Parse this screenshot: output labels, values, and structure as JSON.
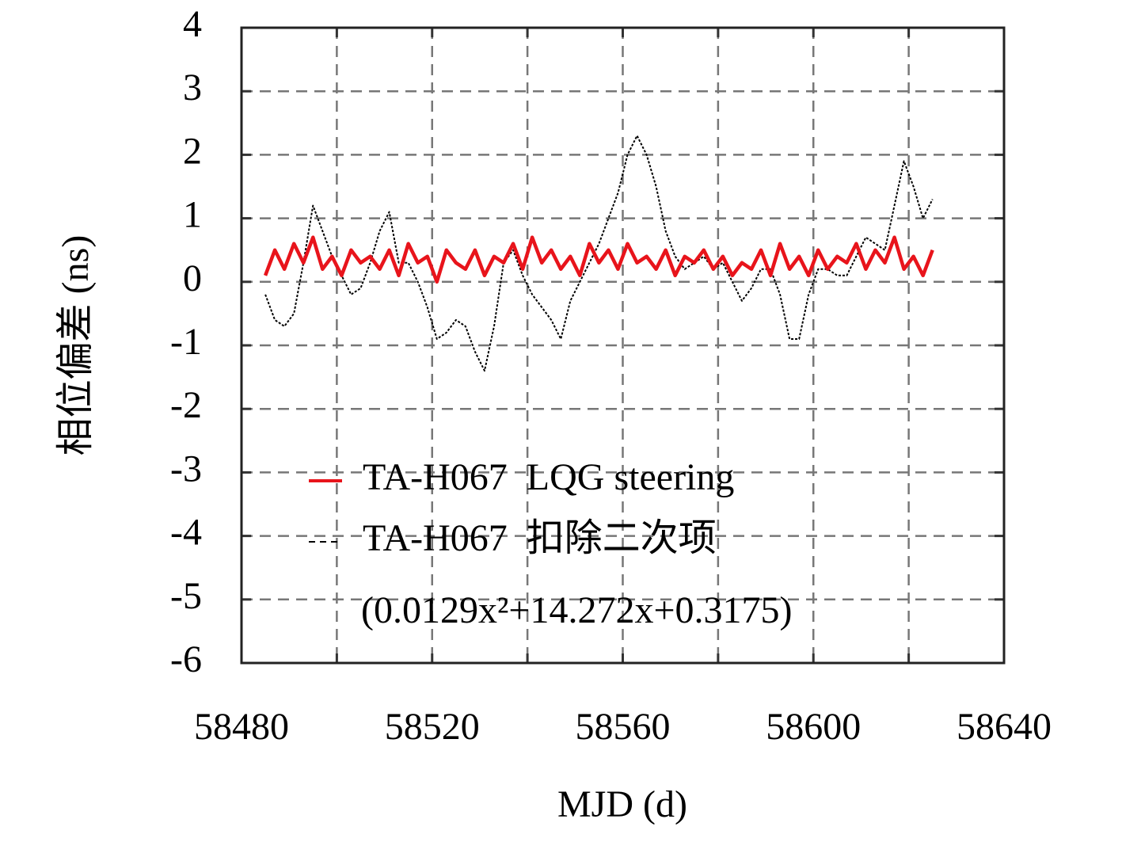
{
  "chart_data": {
    "type": "line",
    "xlabel": "MJD (d)",
    "ylabel": "相位偏差 (ns)",
    "x": [
      58485,
      58487,
      58489,
      58491,
      58493,
      58495,
      58497,
      58499,
      58501,
      58503,
      58505,
      58507,
      58509,
      58511,
      58513,
      58515,
      58517,
      58519,
      58521,
      58523,
      58525,
      58527,
      58529,
      58531,
      58533,
      58535,
      58537,
      58539,
      58541,
      58543,
      58545,
      58547,
      58549,
      58551,
      58553,
      58555,
      58557,
      58559,
      58561,
      58563,
      58565,
      58567,
      58569,
      58571,
      58573,
      58575,
      58577,
      58579,
      58581,
      58583,
      58585,
      58587,
      58589,
      58591,
      58593,
      58595,
      58597,
      58599,
      58601,
      58603,
      58605,
      58607,
      58609,
      58611,
      58613,
      58615,
      58617,
      58619,
      58621,
      58623,
      58625
    ],
    "series": [
      {
        "name": "TA-H067  LQG steering",
        "color": "#e8141b",
        "dashed": false,
        "values": [
          0.1,
          0.5,
          0.2,
          0.6,
          0.3,
          0.7,
          0.2,
          0.4,
          0.1,
          0.5,
          0.3,
          0.4,
          0.2,
          0.5,
          0.1,
          0.6,
          0.3,
          0.4,
          0.0,
          0.5,
          0.3,
          0.2,
          0.5,
          0.1,
          0.4,
          0.3,
          0.6,
          0.2,
          0.7,
          0.3,
          0.5,
          0.2,
          0.4,
          0.1,
          0.6,
          0.3,
          0.5,
          0.2,
          0.6,
          0.3,
          0.4,
          0.2,
          0.5,
          0.1,
          0.4,
          0.3,
          0.5,
          0.2,
          0.4,
          0.1,
          0.3,
          0.2,
          0.5,
          0.1,
          0.6,
          0.2,
          0.4,
          0.1,
          0.5,
          0.2,
          0.4,
          0.3,
          0.6,
          0.2,
          0.5,
          0.3,
          0.7,
          0.2,
          0.4,
          0.1,
          0.5
        ]
      },
      {
        "name": "TA-H067  扣除二次项",
        "color": "#000000",
        "dashed": true,
        "values": [
          -0.2,
          -0.6,
          -0.7,
          -0.5,
          0.3,
          1.2,
          0.8,
          0.4,
          0.1,
          -0.2,
          -0.1,
          0.3,
          0.8,
          1.1,
          0.3,
          0.3,
          0.0,
          -0.4,
          -0.9,
          -0.8,
          -0.6,
          -0.7,
          -1.1,
          -1.4,
          -0.7,
          0.3,
          0.5,
          0.1,
          -0.2,
          -0.4,
          -0.6,
          -0.9,
          -0.3,
          0.0,
          0.3,
          0.6,
          1.0,
          1.4,
          2.0,
          2.3,
          2.0,
          1.5,
          0.8,
          0.4,
          0.2,
          0.3,
          0.4,
          0.2,
          0.3,
          0.0,
          -0.3,
          -0.1,
          0.2,
          0.2,
          -0.2,
          -0.9,
          -0.9,
          -0.2,
          0.2,
          0.2,
          0.1,
          0.1,
          0.4,
          0.7,
          0.6,
          0.5,
          1.2,
          1.9,
          1.5,
          1.0,
          1.3
        ]
      }
    ],
    "legend_note": "(0.0129x²+14.272x+0.3175)",
    "xlim": [
      58480,
      58640
    ],
    "xticks": [
      58480,
      58500,
      58520,
      58540,
      58560,
      58580,
      58600,
      58620,
      58640
    ],
    "xtick_label_every": 2,
    "ylim": [
      -6,
      4
    ],
    "yticks": [
      -6,
      -5,
      -4,
      -3,
      -2,
      -1,
      0,
      1,
      2,
      3,
      4
    ],
    "grid": true
  }
}
